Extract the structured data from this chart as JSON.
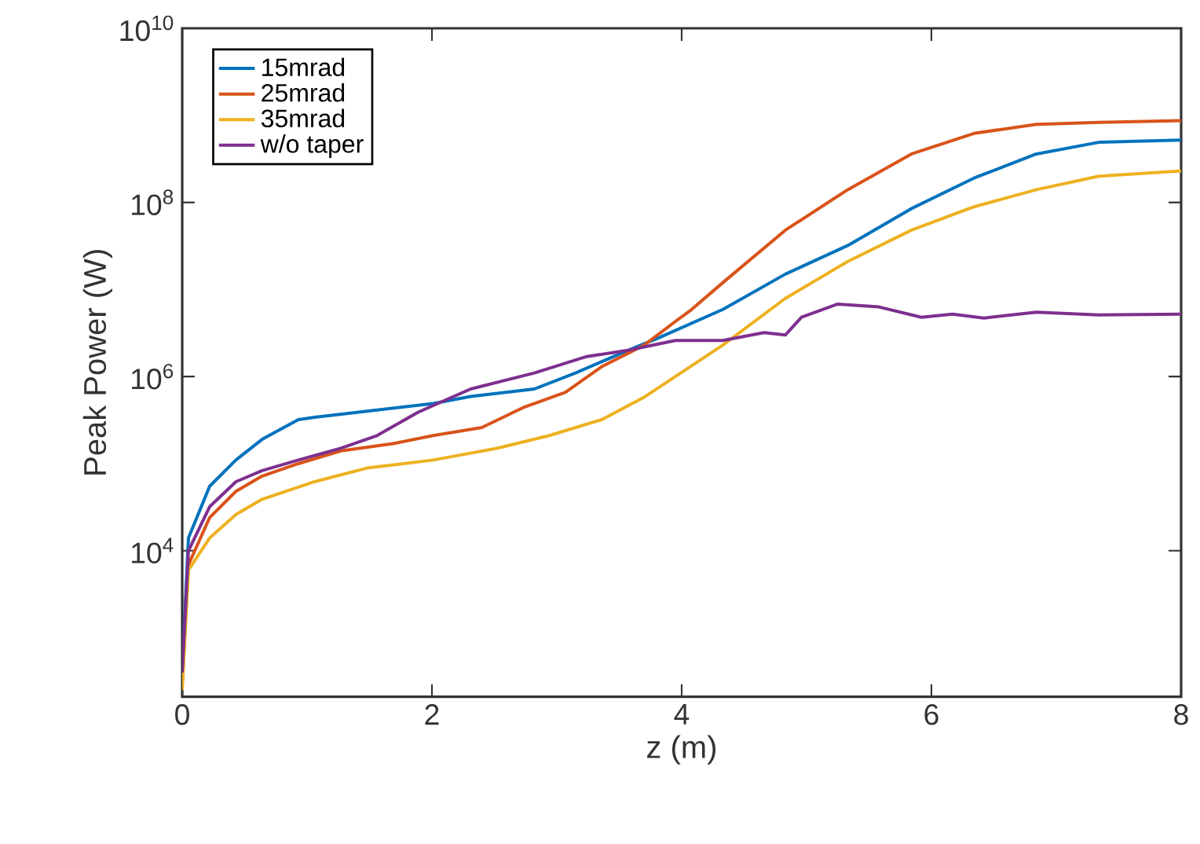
{
  "chart_data": {
    "type": "line",
    "xlabel": "z (m)",
    "ylabel": "Peak Power (W)",
    "log": "y",
    "xlim": [
      0,
      8
    ],
    "ylim": [
      210,
      10000000000
    ],
    "xticks": [
      0,
      2,
      4,
      6,
      8
    ],
    "yticks": [
      {
        "value": 10000,
        "label": "10$^{4}$"
      },
      {
        "value": 1000000,
        "label": "10$^{6}$"
      },
      {
        "value": 100000000,
        "label": "10$^{8}$"
      },
      {
        "value": 10000000000,
        "label": "10$^{10}$"
      }
    ],
    "legend": "top left",
    "grid": false,
    "marker": "none",
    "line_style": "solid",
    "series": [
      {
        "name": "15mrad",
        "color": "#0072bd",
        "x": [
          0,
          0.05,
          0.22,
          0.43,
          0.64,
          0.93,
          1.06,
          1.48,
          2.01,
          2.31,
          2.82,
          3.15,
          3.57,
          3.82,
          4.33,
          4.83,
          5.33,
          5.84,
          6.34,
          6.84,
          7.34,
          8
        ],
        "values": [
          430,
          14000,
          55000,
          110000,
          190000,
          320000,
          340000,
          400000,
          490000,
          590000,
          720000,
          1100000,
          2000000,
          2800000,
          5900000,
          15000000,
          32000000,
          85000000,
          190000000,
          360000000,
          490000000,
          520000000
        ]
      },
      {
        "name": "25mrad",
        "color": "#d95319",
        "x": [
          0,
          0.05,
          0.22,
          0.43,
          0.64,
          0.93,
          1.27,
          1.69,
          2.01,
          2.4,
          2.73,
          3.07,
          3.36,
          3.7,
          3.95,
          4.08,
          4.33,
          4.83,
          5.33,
          5.84,
          6.34,
          6.84,
          7.34,
          8
        ],
        "values": [
          300,
          6900,
          24000,
          48000,
          72000,
          100000,
          140000,
          170000,
          210000,
          260000,
          440000,
          660000,
          1300000,
          2300000,
          4300000,
          5900000,
          12000000,
          48000000,
          140000000,
          360000000,
          620000000,
          790000000,
          830000000,
          870000000
        ]
      },
      {
        "name": "35mrad",
        "color": "#edb120",
        "x": [
          0,
          0.05,
          0.22,
          0.43,
          0.64,
          1.06,
          1.48,
          2.01,
          2.52,
          2.94,
          3.36,
          3.7,
          3.95,
          4.33,
          4.83,
          5.33,
          5.84,
          6.34,
          6.84,
          7.34,
          8
        ],
        "values": [
          250,
          6000,
          14000,
          26000,
          39000,
          62000,
          89000,
          110000,
          150000,
          210000,
          320000,
          580000,
          1000000,
          2300000,
          7900000,
          21000000,
          48000000,
          89000000,
          140000000,
          200000000,
          230000000
        ]
      },
      {
        "name": "w/o taper",
        "color": "#7e2f8e",
        "x": [
          0,
          0.05,
          0.22,
          0.43,
          0.64,
          0.93,
          1.27,
          1.56,
          1.89,
          2.31,
          2.82,
          3.24,
          3.57,
          3.95,
          4.33,
          4.66,
          4.83,
          4.96,
          5.25,
          5.58,
          5.92,
          6.17,
          6.42,
          6.84,
          7.34,
          8
        ],
        "values": [
          400,
          10000,
          32000,
          62000,
          83000,
          110000,
          150000,
          210000,
          390000,
          720000,
          1100000,
          1700000,
          2000000,
          2600000,
          2600000,
          3200000,
          3000000,
          4800000,
          6800000,
          6300000,
          4800000,
          5200000,
          4700000,
          5500000,
          5100000,
          5200000
        ]
      }
    ]
  }
}
